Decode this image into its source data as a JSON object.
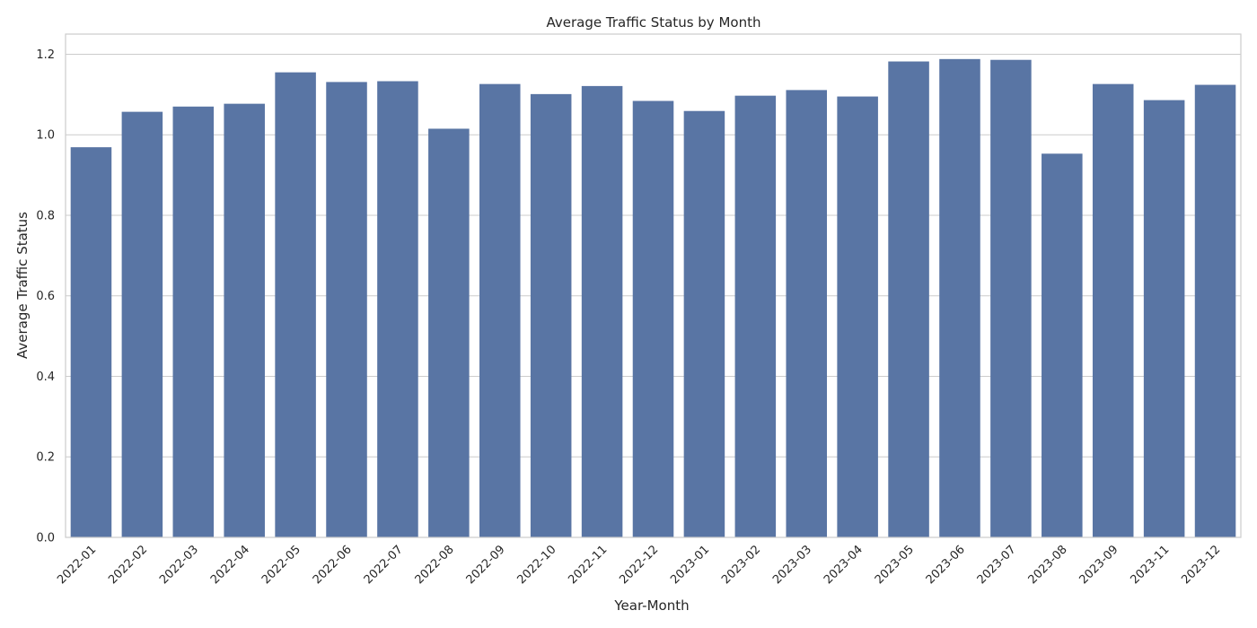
{
  "chart_data": {
    "type": "bar",
    "title": "Average Traffic Status by Month",
    "xlabel": "Year-Month",
    "ylabel": "Average Traffic Status",
    "categories": [
      "2022-01",
      "2022-02",
      "2022-03",
      "2022-04",
      "2022-05",
      "2022-06",
      "2022-07",
      "2022-08",
      "2022-09",
      "2022-10",
      "2022-11",
      "2022-12",
      "2023-01",
      "2023-02",
      "2023-03",
      "2023-04",
      "2023-05",
      "2023-06",
      "2023-07",
      "2023-08",
      "2023-09",
      "2023-11",
      "2023-12"
    ],
    "values": [
      0.969,
      1.057,
      1.07,
      1.077,
      1.155,
      1.131,
      1.133,
      1.015,
      1.126,
      1.101,
      1.121,
      1.084,
      1.059,
      1.097,
      1.111,
      1.095,
      1.182,
      1.188,
      1.186,
      0.953,
      1.126,
      1.086,
      1.124
    ],
    "ylim": [
      0,
      1.25
    ],
    "yticks": [
      "0.0",
      "0.2",
      "0.4",
      "0.6",
      "0.8",
      "1.0",
      "1.2"
    ],
    "grid": "horizontal",
    "bar_color": "#5975a4",
    "grid_color": "#cccccc",
    "frame_color": "#cccccc"
  }
}
